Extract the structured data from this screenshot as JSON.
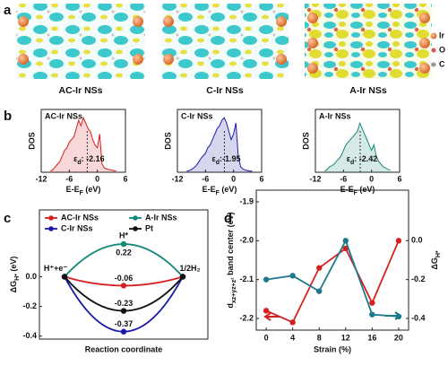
{
  "panel_labels": [
    "a",
    "b",
    "c",
    "d"
  ],
  "structures": {
    "labels": [
      "AC-Ir NSs",
      "C-Ir NSs",
      "A-Ir NSs"
    ],
    "legend": [
      "Ir",
      "O",
      "C"
    ]
  },
  "chart_data": [
    {
      "type": "area",
      "title": "AC-Ir NSs",
      "color": "#d42020",
      "x": [
        -10,
        -9.5,
        -9,
        -8.5,
        -8,
        -7.5,
        -7,
        -6.5,
        -6,
        -5.5,
        -5,
        -4.5,
        -4,
        -3.5,
        -3,
        -2.5,
        -2,
        -1.5,
        -1,
        -0.5,
        0,
        0.5,
        1,
        1.5,
        2,
        2.5,
        3,
        3.5,
        4
      ],
      "values": [
        0.02,
        0.05,
        0.1,
        0.15,
        0.2,
        0.3,
        0.4,
        0.45,
        0.55,
        0.6,
        0.65,
        0.8,
        0.95,
        0.85,
        1.0,
        0.9,
        0.8,
        0.75,
        0.6,
        0.5,
        0.45,
        0.7,
        0.15,
        0.08,
        0.06,
        0.05,
        0.04,
        0.03,
        0.02
      ],
      "xlim": [
        -12,
        6
      ],
      "xticks": [
        -12,
        -6,
        0,
        6
      ],
      "ylim": [
        0,
        1.15
      ],
      "ylabel": "DOS",
      "xlabel": {
        "main": "E-E",
        "sub": "F",
        "rest": " (eV)"
      },
      "annotation": {
        "value": -2.16,
        "symbol": "ε",
        "sub": "d",
        "text": ": -2.16"
      }
    },
    {
      "type": "area",
      "title": "C-Ir NSs",
      "color": "#1a1aa8",
      "x": [
        -10,
        -9.5,
        -9,
        -8.5,
        -8,
        -7.5,
        -7,
        -6.5,
        -6,
        -5.5,
        -5,
        -4.5,
        -4,
        -3.5,
        -3,
        -2.5,
        -2,
        -1.5,
        -1,
        -0.5,
        0,
        0.5,
        1,
        1.5,
        2,
        2.5,
        3,
        3.5,
        4
      ],
      "values": [
        0.02,
        0.03,
        0.05,
        0.08,
        0.12,
        0.18,
        0.25,
        0.3,
        0.35,
        0.45,
        0.5,
        0.6,
        0.7,
        0.8,
        0.85,
        0.95,
        1.0,
        0.9,
        0.75,
        0.6,
        0.7,
        0.9,
        0.3,
        0.1,
        0.06,
        0.04,
        0.03,
        0.02,
        0.02
      ],
      "xlim": [
        -12,
        6
      ],
      "xticks": [
        -12,
        -6,
        0,
        6
      ],
      "ylim": [
        0,
        1.15
      ],
      "ylabel": "DOS",
      "xlabel": {
        "main": "E-E",
        "sub": "F",
        "rest": " (eV)"
      },
      "annotation": {
        "value": -1.95,
        "symbol": "ε",
        "sub": "d",
        "text": ":-1.95"
      }
    },
    {
      "type": "area",
      "title": "A-Ir NSs",
      "color": "#168878",
      "x": [
        -10,
        -9.5,
        -9,
        -8.5,
        -8,
        -7.5,
        -7,
        -6.5,
        -6,
        -5.5,
        -5,
        -4.5,
        -4,
        -3.5,
        -3,
        -2.5,
        -2,
        -1.5,
        -1,
        -0.5,
        0,
        0.5,
        1,
        1.5,
        2,
        2.5,
        3,
        3.5,
        4
      ],
      "values": [
        0.02,
        0.05,
        0.1,
        0.12,
        0.15,
        0.2,
        0.25,
        0.3,
        0.4,
        0.5,
        0.55,
        0.6,
        0.65,
        0.7,
        0.75,
        0.9,
        0.8,
        0.7,
        0.6,
        0.5,
        0.4,
        0.5,
        0.3,
        0.2,
        0.15,
        0.1,
        0.08,
        0.05,
        0.04
      ],
      "xlim": [
        -12,
        6
      ],
      "xticks": [
        -12,
        -6,
        0,
        6
      ],
      "ylim": [
        0,
        1.15
      ],
      "ylabel": "DOS",
      "xlabel": {
        "main": "E-E",
        "sub": "F",
        "rest": " (eV)"
      },
      "annotation": {
        "value": -2.42,
        "symbol": "ε",
        "sub": "d",
        "text": ": -2.42"
      }
    },
    {
      "type": "line",
      "categories": [
        "H⁺+e⁻",
        "H*",
        "1/2H₂"
      ],
      "series": [
        {
          "name": "AC-Ir NSs",
          "color": "#d42020",
          "values": [
            0,
            -0.06,
            0
          ]
        },
        {
          "name": "A-Ir NSs",
          "color": "#168878",
          "values": [
            0,
            0.22,
            0
          ]
        },
        {
          "name": "C-Ir NSs",
          "color": "#1a1aa8",
          "values": [
            0,
            -0.37,
            0
          ]
        },
        {
          "name": "Pt",
          "color": "#111111",
          "values": [
            0,
            -0.23,
            0
          ]
        }
      ],
      "ylim": [
        -0.42,
        0.45
      ],
      "yticks": [
        -0.4,
        -0.2,
        {
          "value": 0,
          "label": "0.0"
        }
      ],
      "xlabel": "Reaction coordinate",
      "ylabel": {
        "main": "ΔG",
        "sub": "H*",
        "rest": " (eV)"
      }
    },
    {
      "type": "line",
      "x": [
        0,
        4,
        8,
        12,
        16,
        20
      ],
      "xlim": [
        -1.5,
        21.5
      ],
      "xticks": [
        0,
        4,
        8,
        12,
        16,
        20
      ],
      "series": [
        {
          "color": "#d42020",
          "values": [
            -2.18,
            -2.21,
            -2.07,
            -2.02,
            -2.16,
            -2.0
          ]
        },
        {
          "color": "#1d7a8c",
          "values": [
            -0.2,
            -0.18,
            -0.26,
            0.0,
            -0.38,
            -0.39
          ],
          "axis": "y2"
        }
      ],
      "ylim": [
        -2.23,
        -1.87
      ],
      "yticks": [
        -2.2,
        -2.1,
        {
          "value": -2,
          "label": "-2.0"
        },
        -1.9
      ],
      "y2lim": [
        -0.46,
        0.26
      ],
      "y2ticks": [
        -0.4,
        -0.2,
        {
          "value": 0,
          "label": "0.0"
        }
      ],
      "xlabel": "Strain (%)",
      "ylabel": {
        "main": "d",
        "sub": "xz+yz+z²",
        "rest": " band center (eV)"
      },
      "y2label": {
        "main": "ΔG",
        "sub": "H*"
      }
    }
  ]
}
